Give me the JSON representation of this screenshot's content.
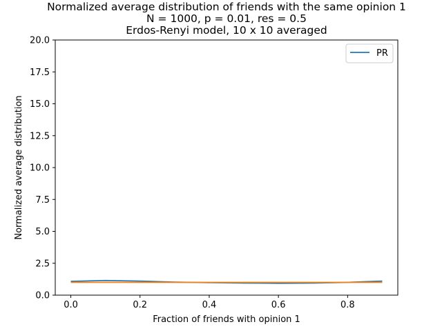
{
  "chart_data": {
    "type": "line",
    "title_lines": [
      "Normalized average distribution of friends with the same opinion 1",
      "N = 1000, p = 0.01, res = 0.5",
      "Erdos-Renyi model, 10 x 10 averaged"
    ],
    "xlabel": "Fraction of friends with opinion 1",
    "ylabel": "Normalized average distribution",
    "xlim": [
      -0.045,
      0.945
    ],
    "ylim": [
      0,
      20
    ],
    "xticks": [
      "0.0",
      "0.2",
      "0.4",
      "0.6",
      "0.8"
    ],
    "xtick_values": [
      0.0,
      0.2,
      0.4,
      0.6,
      0.8
    ],
    "yticks": [
      "0.0",
      "2.5",
      "5.0",
      "7.5",
      "10.0",
      "12.5",
      "15.0",
      "17.5",
      "20.0"
    ],
    "ytick_values": [
      0,
      2.5,
      5,
      7.5,
      10,
      12.5,
      15,
      17.5,
      20
    ],
    "grid": false,
    "legend_position": "upper right",
    "x": [
      0.0,
      0.1,
      0.2,
      0.3,
      0.4,
      0.5,
      0.6,
      0.7,
      0.8,
      0.9
    ],
    "series": [
      {
        "name": "PR",
        "color": "#1f77b4",
        "values": [
          1.08,
          1.15,
          1.1,
          1.02,
          0.98,
          0.95,
          0.93,
          0.95,
          1.0,
          1.1
        ],
        "in_legend": true
      },
      {
        "color": "#ff7f0e",
        "values": [
          1.0,
          1.0,
          1.0,
          1.0,
          1.0,
          1.0,
          1.0,
          1.0,
          1.0,
          1.0
        ],
        "in_legend": false
      }
    ]
  }
}
